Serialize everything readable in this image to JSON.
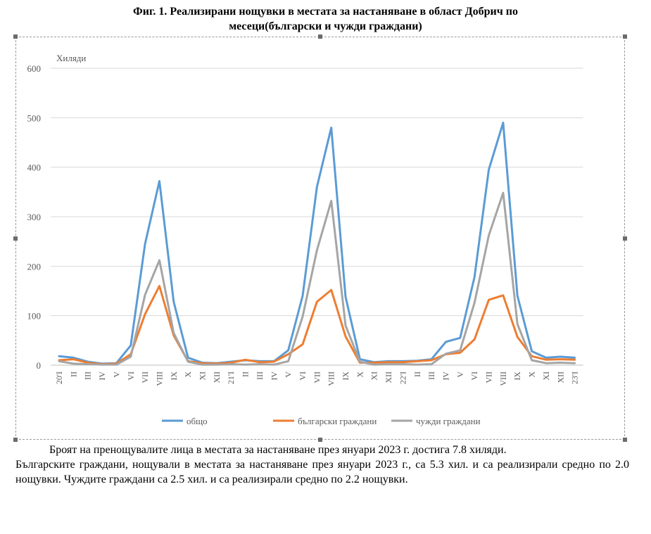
{
  "figure": {
    "title_line1": "Фиг. 1. Реализирани нощувки в местата за настаняване в област Добрич по",
    "title_line2": "месеци(български и чужди граждани)"
  },
  "chart_data": {
    "type": "line",
    "unit_label": "Хиляди",
    "ylim": [
      0,
      600
    ],
    "yticks": [
      0,
      100,
      200,
      300,
      400,
      500,
      600
    ],
    "grid": true,
    "legend_position": "bottom",
    "categories": [
      "20'I",
      "II",
      "III",
      "IV",
      "V",
      "VI",
      "VII",
      "VIII",
      "IX",
      "X",
      "XI",
      "XII",
      "21'I",
      "II",
      "III",
      "IV",
      "V",
      "VI",
      "VII",
      "VIII",
      "IX",
      "X",
      "XI",
      "XII",
      "22'I",
      "II",
      "III",
      "IV",
      "V",
      "VI",
      "VII",
      "VIII",
      "IX",
      "X",
      "XI",
      "XII",
      "23'I"
    ],
    "series": [
      {
        "name": "общо",
        "color": "#5b9bd5",
        "values": [
          18,
          15,
          7,
          3,
          4,
          40,
          245,
          372,
          128,
          15,
          5,
          4,
          7,
          10,
          8,
          8,
          30,
          140,
          360,
          480,
          138,
          12,
          6,
          8,
          8,
          9,
          12,
          47,
          55,
          178,
          395,
          490,
          140,
          28,
          15,
          17,
          15
        ]
      },
      {
        "name": "български граждани",
        "color": "#ed7d31",
        "values": [
          10,
          12,
          5,
          2,
          3,
          22,
          103,
          160,
          60,
          8,
          4,
          3,
          5,
          11,
          6,
          7,
          22,
          42,
          128,
          152,
          58,
          5,
          5,
          6,
          6,
          8,
          10,
          22,
          25,
          52,
          132,
          141,
          57,
          18,
          11,
          12,
          11
        ]
      },
      {
        "name": "чужди граждани",
        "color": "#a5a5a5",
        "values": [
          8,
          3,
          2,
          1,
          1,
          17,
          142,
          212,
          65,
          7,
          1,
          1,
          2,
          1,
          2,
          1,
          8,
          98,
          232,
          332,
          80,
          7,
          1,
          2,
          2,
          1,
          2,
          23,
          30,
          126,
          262,
          348,
          83,
          10,
          4,
          5,
          4
        ]
      }
    ]
  },
  "body": {
    "paragraph1": "Броят на пренощувалите лица в местата за настаняване през януари 2023 г. достига 7.8 хиляди.",
    "paragraph2": "Българските граждани, нощували в местата за настаняване през януари 2023 г., са 5.3 хил. и са реализирали средно по 2.0 нощувки. Чуждите граждани са 2.5 хил. и са реализирали средно по 2.2 нощувки."
  }
}
